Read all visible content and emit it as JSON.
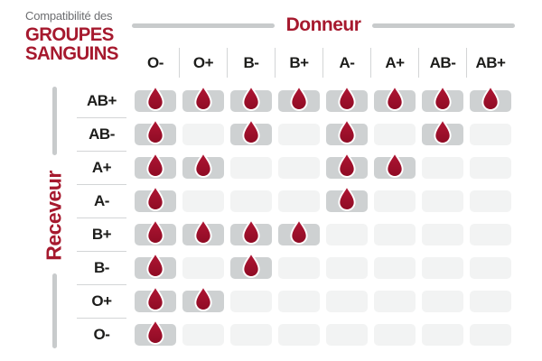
{
  "title": {
    "subtitle": "Compatibilité des",
    "line1": "GROUPES",
    "line2": "SANGUINS"
  },
  "axes": {
    "donor_label": "Donneur",
    "recipient_label": "Receveur"
  },
  "chart_data": {
    "type": "heatmap",
    "title": "Compatibilité des groupes sanguins",
    "columns_axis_label": "Donneur",
    "rows_axis_label": "Receveur",
    "columns": [
      "O-",
      "O+",
      "B-",
      "B+",
      "A-",
      "A+",
      "AB-",
      "AB+"
    ],
    "rows": [
      "AB+",
      "AB-",
      "A+",
      "A-",
      "B+",
      "B-",
      "O+",
      "O-"
    ],
    "matrix": [
      [
        1,
        1,
        1,
        1,
        1,
        1,
        1,
        1
      ],
      [
        1,
        0,
        1,
        0,
        1,
        0,
        1,
        0
      ],
      [
        1,
        1,
        0,
        0,
        1,
        1,
        0,
        0
      ],
      [
        1,
        0,
        0,
        0,
        1,
        0,
        0,
        0
      ],
      [
        1,
        1,
        1,
        1,
        0,
        0,
        0,
        0
      ],
      [
        1,
        0,
        1,
        0,
        0,
        0,
        0,
        0
      ],
      [
        1,
        1,
        0,
        0,
        0,
        0,
        0,
        0
      ],
      [
        1,
        0,
        0,
        0,
        0,
        0,
        0,
        0
      ]
    ],
    "cell_true_marker": "blood-drop-icon",
    "layout": {
      "grid": "8x8",
      "compatible_cell": "gray pill with red drop",
      "incompatible_cell": "faint gray pill"
    }
  },
  "colors": {
    "accent_red": "#a6192e",
    "drop_red_top": "#b11634",
    "drop_red_bottom": "#8e0b24",
    "cell_active": "#ced1d2",
    "cell_inactive": "#f2f3f3",
    "divider": "#d3d5d6",
    "bar_gray": "#c8cbcc",
    "text_dark": "#1d1d1b",
    "text_gray": "#6d6e71"
  }
}
